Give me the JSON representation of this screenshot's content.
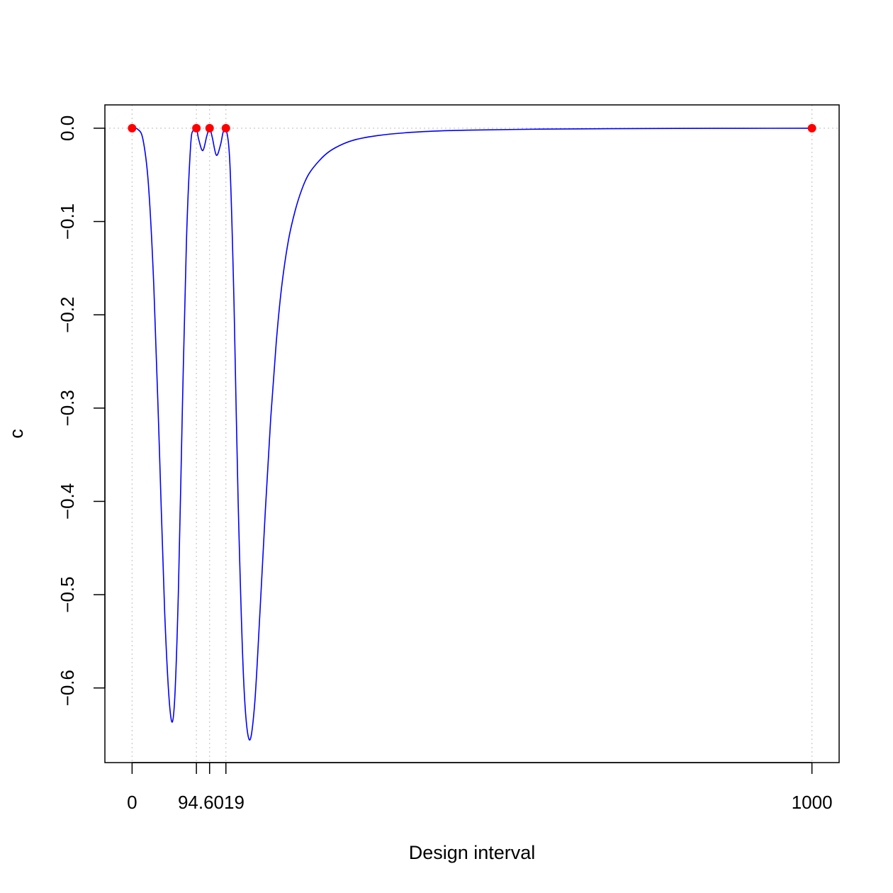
{
  "chart_data": {
    "type": "line",
    "title": "",
    "xlabel": "Design interval",
    "ylabel": "c",
    "xlim": [
      -40,
      1040
    ],
    "ylim": [
      -0.68,
      0.025
    ],
    "x_ticks": [
      {
        "value": 0,
        "label": "0"
      },
      {
        "value": 94.6,
        "label": ""
      },
      {
        "value": 114,
        "label": ""
      },
      {
        "value": 138,
        "label": ""
      },
      {
        "value": 1000,
        "label": "1000"
      }
    ],
    "x_tick_group_label": "94.6019",
    "y_ticks": [
      {
        "value": 0.0,
        "label": "0.0"
      },
      {
        "value": -0.1,
        "label": "−0.1"
      },
      {
        "value": -0.2,
        "label": "−0.2"
      },
      {
        "value": -0.3,
        "label": "−0.3"
      },
      {
        "value": -0.4,
        "label": "−0.4"
      },
      {
        "value": -0.5,
        "label": "−0.5"
      },
      {
        "value": -0.6,
        "label": "−0.6"
      }
    ],
    "grid": "dotted lines at design points and y = 0",
    "series": [
      {
        "color": "#0000ff",
        "x": [
          0,
          8,
          16,
          24,
          32,
          40,
          48,
          56,
          62,
          68,
          74,
          80,
          86,
          90,
          94.6,
          98,
          104,
          110,
          114,
          118,
          124,
          130,
          134,
          138,
          144,
          150,
          156,
          164,
          172,
          180,
          188,
          196,
          204,
          212,
          220,
          230,
          240,
          250,
          260,
          275,
          290,
          310,
          330,
          360,
          400,
          450,
          500,
          600,
          700,
          800,
          900,
          1000
        ],
        "y": [
          0,
          -0.001,
          -0.012,
          -0.06,
          -0.17,
          -0.34,
          -0.52,
          -0.625,
          -0.62,
          -0.5,
          -0.3,
          -0.12,
          -0.02,
          -0.002,
          0,
          -0.012,
          -0.024,
          -0.008,
          0,
          -0.01,
          -0.029,
          -0.018,
          -0.004,
          0,
          -0.04,
          -0.19,
          -0.4,
          -0.59,
          -0.655,
          -0.62,
          -0.52,
          -0.41,
          -0.31,
          -0.23,
          -0.17,
          -0.12,
          -0.088,
          -0.065,
          -0.049,
          -0.035,
          -0.025,
          -0.017,
          -0.012,
          -0.008,
          -0.005,
          -0.003,
          -0.002,
          -0.001,
          -0.0005,
          -0.0002,
          -0.0001,
          0
        ]
      }
    ],
    "points": {
      "color": "#ff0000",
      "x": [
        0,
        94.6,
        114,
        138,
        1000
      ],
      "y": [
        0,
        0,
        0,
        0,
        0
      ]
    }
  }
}
